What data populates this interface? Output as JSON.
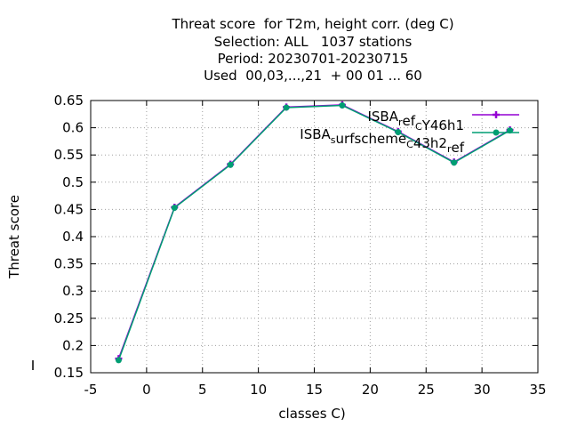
{
  "title_lines": [
    "Threat score  for T2m, height corr. (deg C)",
    "Selection: ALL   1037 stations",
    "Period: 20230701-20230715",
    "Used  00,03,...,21  + 00 01 ... 60"
  ],
  "chart_data": {
    "type": "line",
    "xlabel": "classes C)",
    "ylabel": "Threat score",
    "xlim": [
      -5,
      35
    ],
    "ylim": [
      0.15,
      0.65
    ],
    "xticks": [
      -5,
      0,
      5,
      10,
      15,
      20,
      25,
      30,
      35
    ],
    "yticks": [
      0.15,
      0.2,
      0.25,
      0.3,
      0.35,
      0.4,
      0.45,
      0.5,
      0.55,
      0.6,
      0.65
    ],
    "grid": true,
    "legend_position": "top-right",
    "series": [
      {
        "name": "ISBA_ref_C Y46h1",
        "legend_main": [
          "ISBA",
          "ef",
          "Y46h1"
        ],
        "legend_sub": [
          "r",
          "C"
        ],
        "color": "#9400d3",
        "marker": "plus",
        "x": [
          -2.5,
          2.5,
          7.5,
          12.5,
          17.5,
          22.5,
          27.5,
          32.5
        ],
        "y": [
          0.176,
          0.454,
          0.533,
          0.638,
          0.642,
          0.593,
          0.537,
          0.596
        ]
      },
      {
        "name": "ISBA_surfscheme_C 43h2_ref",
        "legend_main": [
          "ISBA",
          "urfscheme",
          "43h2",
          "ef"
        ],
        "legend_sub": [
          "s",
          "C",
          "r"
        ],
        "color": "#009e73",
        "marker": "circle",
        "x": [
          -2.5,
          2.5,
          7.5,
          12.5,
          17.5,
          22.5,
          27.5,
          32.5
        ],
        "y": [
          0.173,
          0.453,
          0.532,
          0.637,
          0.641,
          0.592,
          0.536,
          0.595
        ]
      }
    ]
  }
}
